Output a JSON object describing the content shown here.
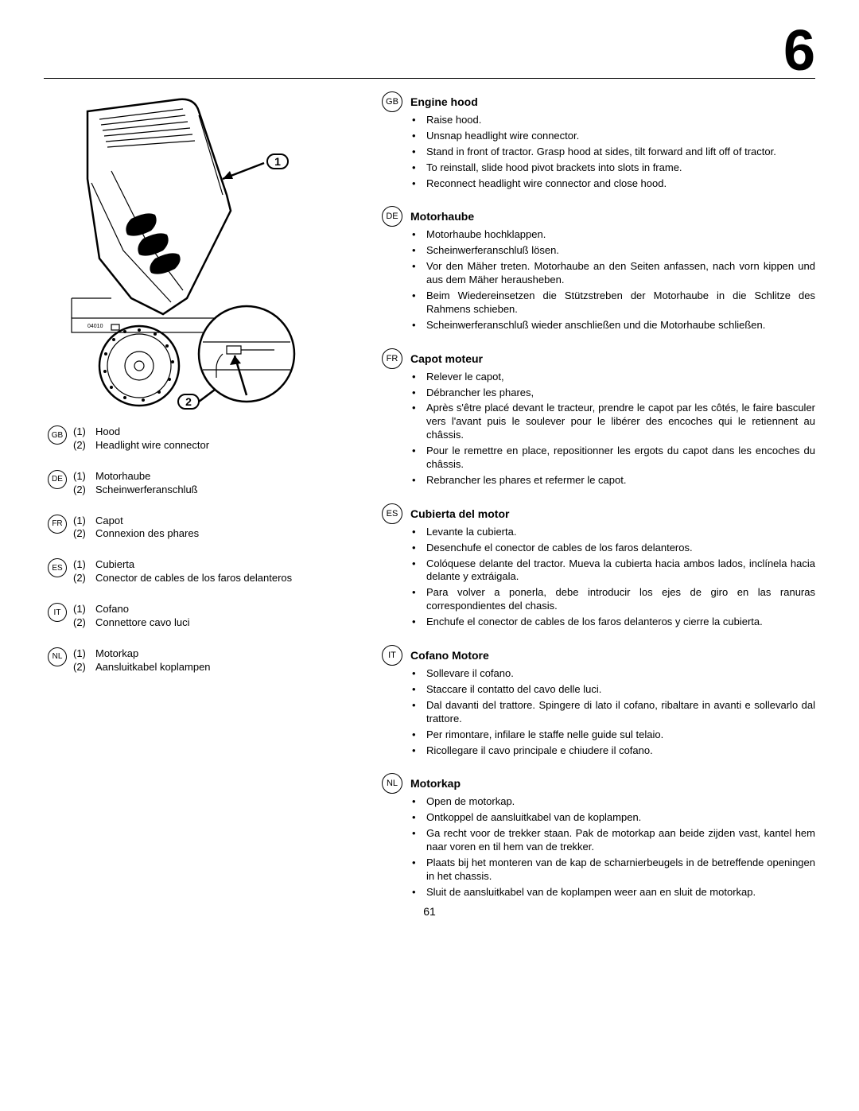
{
  "chapter_number": "6",
  "page_number": "61",
  "diagram": {
    "callouts": [
      "1",
      "2"
    ]
  },
  "legend": [
    {
      "lang": "GB",
      "items": [
        {
          "num": "(1)",
          "label": "Hood"
        },
        {
          "num": "(2)",
          "label": "Headlight  wire connector"
        }
      ]
    },
    {
      "lang": "DE",
      "items": [
        {
          "num": "(1)",
          "label": "Motorhaube"
        },
        {
          "num": "(2)",
          "label": "Scheinwerferanschluß"
        }
      ]
    },
    {
      "lang": "FR",
      "items": [
        {
          "num": "(1)",
          "label": "Capot"
        },
        {
          "num": "(2)",
          "label": "Connexion des phares"
        }
      ]
    },
    {
      "lang": "ES",
      "items": [
        {
          "num": "(1)",
          "label": "Cubierta"
        },
        {
          "num": "(2)",
          "label": "Conector de cables de los faros delanteros"
        }
      ]
    },
    {
      "lang": "IT",
      "items": [
        {
          "num": "(1)",
          "label": "Cofano"
        },
        {
          "num": "(2)",
          "label": "Connettore cavo luci"
        }
      ]
    },
    {
      "lang": "NL",
      "items": [
        {
          "num": "(1)",
          "label": "Motorkap"
        },
        {
          "num": "(2)",
          "label": "Aansluitkabel koplampen"
        }
      ]
    }
  ],
  "sections": [
    {
      "lang": "GB",
      "title": "Engine hood",
      "bullets": [
        "Raise hood.",
        "Unsnap headlight wire connector.",
        "Stand in front of tractor. Grasp hood at sides, tilt forward and lift off of tractor.",
        "To reinstall, slide hood pivot brackets into slots in frame.",
        "Reconnect headlight wire connector and close hood."
      ]
    },
    {
      "lang": "DE",
      "title": "Motorhaube",
      "bullets": [
        "Motorhaube hochklappen.",
        "Scheinwerferanschluß lösen.",
        "Vor den Mäher treten. Motorhaube an den Seiten anfassen, nach vorn kippen und aus dem Mäher herausheben.",
        "Beim Wiedereinsetzen die Stützstreben der Motorhaube in die Schlitze des Rahmens schieben.",
        "Scheinwerferanschluß wieder anschließen und die Motorhaube schließen."
      ]
    },
    {
      "lang": "FR",
      "title": "Capot moteur",
      "bullets": [
        "Relever le capot,",
        "Débrancher les phares,",
        "Après s'être placé devant le tracteur, prendre le capot par les côtés, le faire basculer vers l'avant puis le soulever pour le libérer des encoches qui le retiennent au châssis.",
        "Pour le remettre en place, repositionner les ergots du capot dans les encoches du châssis.",
        "Rebrancher les phares et refermer le capot."
      ]
    },
    {
      "lang": "ES",
      "title": "Cubierta del motor",
      "bullets": [
        "Levante la cubierta.",
        "Desenchufe el conector de cables de los faros delanteros.",
        "Colóquese delante del tractor. Mueva la cubierta hacia ambos lados, inclínela hacia delante y extráigala.",
        "Para volver a ponerla, debe introducir los ejes de giro en las ranuras correspondientes del chasis.",
        "Enchufe el conector de cables de los faros delanteros y cierre la cubierta."
      ]
    },
    {
      "lang": "IT",
      "title": "Cofano Motore",
      "bullets": [
        "Sollevare il cofano.",
        "Staccare il contatto del cavo delle luci.",
        "Dal davanti del trattore. Spingere di lato il cofano, ribaltare in avanti e sollevarlo dal trattore.",
        "Per rimontare, infilare le staffe nelle guide sul telaio.",
        "Ricollegare il cavo principale e chiudere il cofano."
      ]
    },
    {
      "lang": "NL",
      "title": "Motorkap",
      "bullets": [
        "Open de motorkap.",
        "Ontkoppel de aansluitkabel van de koplampen.",
        "Ga recht voor de trekker staan. Pak de motorkap aan beide zijden vast, kantel hem naar voren en til hem van de trekker.",
        "Plaats bij het monteren van de kap de scharnierbeugels in de betreffende openingen in het chassis.",
        "Sluit de aansluitkabel van de koplampen weer aan en sluit de motorkap."
      ]
    }
  ]
}
